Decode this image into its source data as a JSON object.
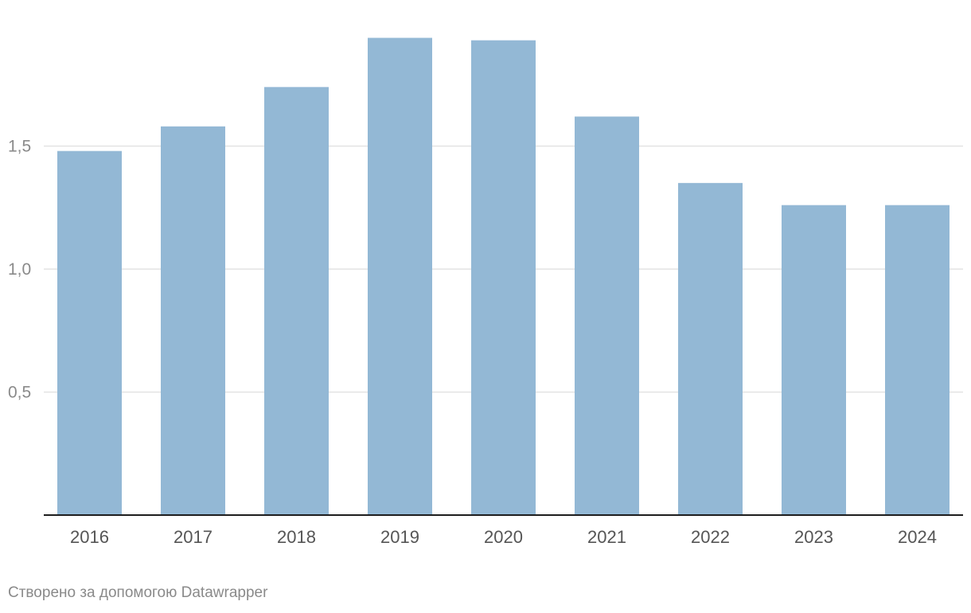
{
  "chart_data": {
    "type": "bar",
    "title": "",
    "xlabel": "",
    "ylabel": "",
    "categories": [
      "2016",
      "2017",
      "2018",
      "2019",
      "2020",
      "2021",
      "2022",
      "2023",
      "2024"
    ],
    "values": [
      1.48,
      1.58,
      1.74,
      1.94,
      1.93,
      1.62,
      1.35,
      1.26,
      1.26
    ],
    "ylim": [
      0,
      2.0
    ],
    "yticks": [
      {
        "value": 0.5,
        "label": "0,5"
      },
      {
        "value": 1.0,
        "label": "1,0"
      },
      {
        "value": 1.5,
        "label": "1,5"
      }
    ],
    "grid": true,
    "bar_color": "#93b8d5"
  },
  "footer": {
    "credit": "Створено за допомогою Datawrapper"
  }
}
